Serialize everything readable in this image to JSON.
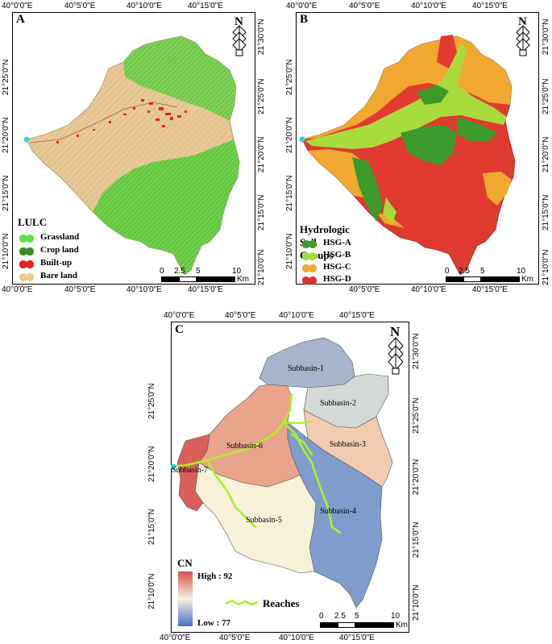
{
  "panels": {
    "a": {
      "label": "A",
      "legend_title": "LULC",
      "legend": [
        {
          "name": "Grassland",
          "color": "#5fe04a"
        },
        {
          "name": "Crop land",
          "color": "#3c8c1e"
        },
        {
          "name": "Built-up",
          "color": "#e32222"
        },
        {
          "name": "Bare land",
          "color": "#efc98f"
        }
      ],
      "top_ticks": [
        "40°0'0\"E",
        "40°5'0\"E",
        "40°10'0\"E",
        "40°15'0\"E"
      ],
      "bottom_ticks": [
        "40°0'0\"E",
        "40°5'0\"E",
        "40°10'0\"E",
        "40°15'0\"E"
      ],
      "left_ticks": [
        "21°25'0\"N",
        "21°20'0\"N",
        "21°15'0\"N",
        "21°10'0\"N"
      ],
      "right_ticks": [
        "21°30'0\"N",
        "21°25'0\"N",
        "21°20'0\"N",
        "21°15'0\"N",
        "21°10'0\"N"
      ],
      "scale": [
        "0",
        "2.5",
        "5",
        "10",
        "Km"
      ]
    },
    "b": {
      "label": "B",
      "legend_title": "Hydrologic Soil Groups",
      "legend": [
        {
          "name": "HSG-A",
          "color": "#3c9a2a"
        },
        {
          "name": "HSG-B",
          "color": "#a8dc3c"
        },
        {
          "name": "HSG-C",
          "color": "#f0a830"
        },
        {
          "name": "HSG-D",
          "color": "#e03030"
        }
      ],
      "top_ticks": [
        "40°0'0\"E",
        "40°5'0\"E",
        "40°10'0\"E",
        "40°15'0\"E"
      ],
      "bottom_ticks": [
        "40°5'0\"E",
        "40°10'0\"E",
        "40°15'0\"E"
      ],
      "left_ticks": [
        "21°25'0\"N",
        "21°20'0\"N",
        "21°15'0\"N",
        "21°10'0\"N"
      ],
      "right_ticks": [
        "21°30'0\"N",
        "21°25'0\"N",
        "21°20'0\"N",
        "21°15'0\"N",
        "21°10'0\"N"
      ],
      "scale": [
        "0",
        "2.5",
        "5",
        "10",
        "Km"
      ]
    },
    "c": {
      "label": "C",
      "legend_title": "CN",
      "cn_high": "High : 92",
      "cn_low": "Low : 77",
      "reaches_label": "Reaches",
      "subbasins": [
        "Subbasin-1",
        "Subbasin-2",
        "Subbasin-3",
        "Subbasin-4",
        "Subbasin-5",
        "Subbasin-6",
        "Subbasin-7"
      ],
      "top_ticks": [
        "40°0'0\"E",
        "40°5'0\"E",
        "40°10'0\"E",
        "40°15'0\"E"
      ],
      "bottom_ticks": [
        "40°0'0\"E",
        "40°5'0\"E",
        "40°10'0\"E",
        "40°15'0\"E"
      ],
      "left_ticks": [
        "21°25'0\"N",
        "21°20'0\"N",
        "21°15'0\"N",
        "21°10'0\"N"
      ],
      "right_ticks": [
        "21°30'0\"N",
        "21°25'0\"N",
        "21°20'0\"N",
        "21°15'0\"N",
        "21°10'0\"N"
      ],
      "scale": [
        "0",
        "2.5",
        "5",
        "10",
        "Km"
      ]
    }
  },
  "colors": {
    "cn_high": "#d9534f",
    "cn_mid": "#f7f2dc",
    "cn_low": "#4a6fd0",
    "reach": "#aef02a",
    "outlet": "#2dd6d6"
  }
}
